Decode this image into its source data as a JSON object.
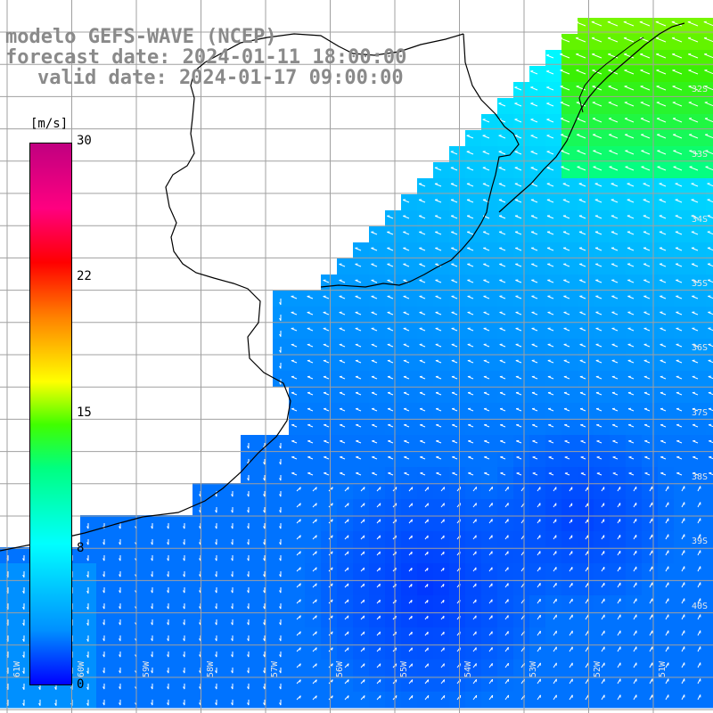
{
  "titles": {
    "line1": "modelo GEFS-WAVE (NCEP)",
    "line2": "forecast date: 2024-01-11 18:00:00",
    "line3": "valid date: 2024-01-17 09:00:00"
  },
  "colorbar": {
    "unit": "[m/s]",
    "ticks": [
      "30",
      "22",
      "15",
      "8",
      "0"
    ],
    "colors": [
      "#0000ff",
      "#0090ff",
      "#00ffff",
      "#00ff80",
      "#40ff00",
      "#ffff00",
      "#ff8000",
      "#ff0000",
      "#ff0080",
      "#c00080"
    ]
  },
  "map": {
    "lat_labels": [
      "32S",
      "33S",
      "34S",
      "35S",
      "36S",
      "37S",
      "38S",
      "39S",
      "40S"
    ],
    "lon_labels": [
      "61W",
      "60W",
      "59W",
      "58W",
      "57W",
      "56W",
      "55W",
      "54W",
      "53W",
      "52W",
      "51W"
    ],
    "land_color": "#ffffff",
    "grid_color": "#a0a0a0",
    "coast_color": "#000000"
  }
}
